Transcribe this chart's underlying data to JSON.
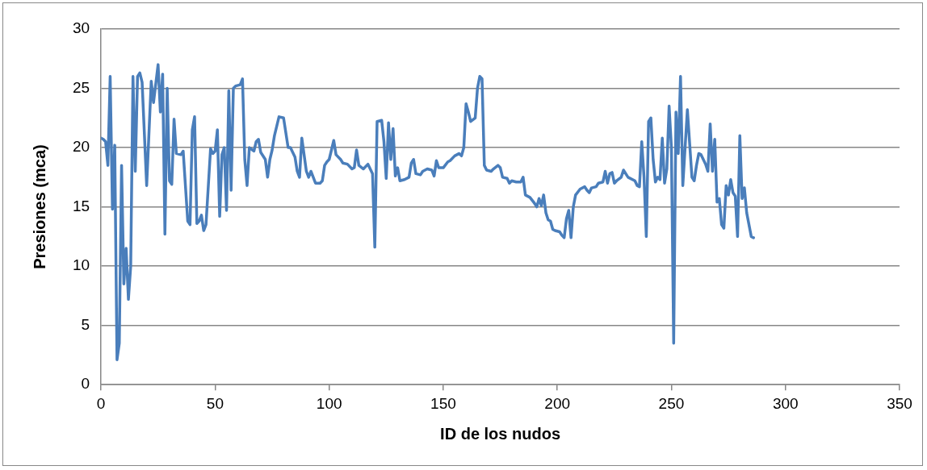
{
  "chart_data": {
    "type": "line",
    "xlabel": "ID de los nudos",
    "ylabel": "Presiones (mca)",
    "xlim": [
      0,
      350
    ],
    "xticks": [
      0,
      50,
      100,
      150,
      200,
      250,
      300,
      350
    ],
    "ylim": [
      0,
      30
    ],
    "yticks": [
      0,
      5,
      10,
      15,
      20,
      25,
      30
    ],
    "grid": "y",
    "legend": false,
    "marker": "none",
    "line_style": "solid",
    "x": [
      0,
      1,
      2,
      3,
      4,
      5,
      6,
      7,
      8,
      9,
      10,
      11,
      12,
      13,
      14,
      15,
      16,
      17,
      18,
      20,
      22,
      23,
      25,
      26,
      27,
      28,
      29,
      30,
      31,
      32,
      33,
      35,
      36,
      38,
      39,
      40,
      41,
      42,
      43,
      44,
      45,
      46,
      48,
      49,
      50,
      51,
      52,
      53,
      54,
      55,
      56,
      57,
      58,
      59,
      61,
      62,
      63,
      64,
      65,
      67,
      68,
      69,
      70,
      72,
      73,
      74,
      75,
      76,
      78,
      80,
      82,
      83,
      85,
      86,
      87,
      88,
      90,
      91,
      92,
      94,
      96,
      97,
      98,
      99,
      100,
      102,
      103,
      105,
      106,
      108,
      110,
      111,
      112,
      113,
      115,
      117,
      119,
      120,
      121,
      123,
      124,
      125,
      126,
      127,
      128,
      129,
      130,
      131,
      133,
      135,
      136,
      137,
      138,
      140,
      141,
      143,
      145,
      146,
      147,
      148,
      150,
      152,
      153,
      155,
      157,
      158,
      159,
      160,
      161,
      162,
      164,
      165,
      166,
      167,
      168,
      169,
      171,
      172,
      174,
      175,
      176,
      178,
      179,
      180,
      182,
      184,
      185,
      186,
      188,
      190,
      191,
      192,
      193,
      194,
      195,
      196,
      197,
      198,
      199,
      201,
      202,
      203,
      204,
      205,
      206,
      207,
      208,
      210,
      212,
      213,
      214,
      215,
      217,
      218,
      220,
      221,
      222,
      223,
      224,
      225,
      226,
      228,
      229,
      231,
      234,
      235,
      236,
      237,
      238,
      239,
      240,
      241,
      242,
      243,
      244,
      245,
      246,
      247,
      248,
      249,
      250,
      251,
      252,
      253,
      254,
      255,
      256,
      257,
      259,
      260,
      261,
      262,
      263,
      265,
      266,
      267,
      268,
      269,
      270,
      271,
      272,
      273,
      274,
      275,
      276,
      277,
      278,
      279,
      280,
      281,
      282,
      283,
      285,
      286
    ],
    "series": [
      {
        "color": "#4a7ebb",
        "values": [
          20.8,
          20.7,
          20.5,
          18.5,
          26,
          14.8,
          20.2,
          2.1,
          3.5,
          18.5,
          8.5,
          11.5,
          7.2,
          10,
          26,
          18,
          26,
          26.3,
          25.5,
          16.8,
          25.6,
          23.8,
          27,
          23,
          26.2,
          12.7,
          25,
          17.2,
          16.9,
          22.4,
          19.5,
          19.4,
          19.7,
          13.8,
          13.5,
          21.5,
          22.6,
          13.6,
          13.8,
          14.3,
          13,
          13.5,
          19.9,
          19.5,
          19.7,
          21.5,
          14.2,
          19.4,
          20,
          14.7,
          24.8,
          16.4,
          25,
          25.2,
          25.3,
          25.8,
          19,
          16.8,
          20,
          19.7,
          20.5,
          20.7,
          19.6,
          19,
          17.5,
          19,
          19.8,
          21,
          22.6,
          22.5,
          20,
          20,
          19.2,
          18,
          17.5,
          20.8,
          18,
          17.5,
          18,
          17,
          17,
          17.2,
          18.5,
          18.8,
          19,
          20.6,
          19.4,
          19,
          18.7,
          18.6,
          18.2,
          18.3,
          19.8,
          18.5,
          18.2,
          18.6,
          17.8,
          11.6,
          22.2,
          22.3,
          20.5,
          17.4,
          22.1,
          19,
          21.6,
          17.6,
          18.3,
          17.2,
          17.3,
          17.5,
          18.7,
          19,
          17.8,
          17.7,
          18,
          18.2,
          18.1,
          17.6,
          18.9,
          18.3,
          18.3,
          18.8,
          18.9,
          19.3,
          19.5,
          19.3,
          20,
          23.7,
          23,
          22.2,
          22.5,
          25,
          26,
          25.8,
          18.5,
          18.1,
          18,
          18.2,
          18.5,
          18.3,
          17.5,
          17.4,
          17,
          17.2,
          17.1,
          17.1,
          17.5,
          16,
          15.8,
          15.3,
          15,
          15.7,
          15.1,
          16,
          14.5,
          13.9,
          13.8,
          13.1,
          13,
          12.9,
          12.6,
          12.4,
          14,
          14.7,
          12.4,
          15,
          16,
          16.5,
          16.7,
          16.4,
          16.2,
          16.6,
          16.7,
          17,
          17.1,
          18,
          17,
          17.8,
          17.9,
          17,
          17.2,
          17.5,
          18.1,
          17.5,
          17.2,
          16.8,
          16.7,
          20.5,
          17.5,
          12.5,
          22.2,
          22.5,
          19,
          17.1,
          17.5,
          17.3,
          20.8,
          17,
          18.2,
          23.5,
          20,
          3.5,
          23,
          19.5,
          26,
          16.8,
          20,
          23.2,
          17.5,
          17.2,
          18.5,
          19.5,
          19.4,
          18.6,
          18,
          22,
          18,
          20.7,
          15.4,
          15.7,
          13.5,
          13.2,
          16.8,
          16,
          17.3,
          16.2,
          15.9,
          12.5,
          21,
          15.7,
          16.6,
          14.5,
          12.5,
          12.4
        ]
      }
    ]
  }
}
